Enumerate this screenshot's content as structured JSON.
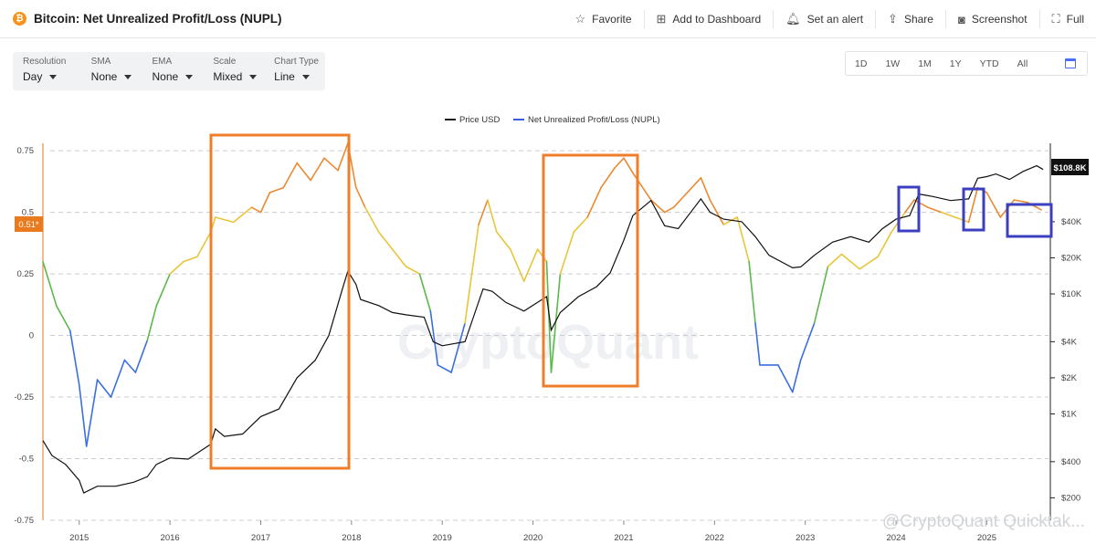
{
  "header": {
    "logo_symbol": "₿",
    "title": "Bitcoin: Net Unrealized Profit/Loss (NUPL)",
    "actions": [
      {
        "label": "Favorite",
        "icon": "star-icon",
        "glyph": "☆"
      },
      {
        "label": "Add to Dashboard",
        "icon": "add-dashboard-icon",
        "glyph": "⊞"
      },
      {
        "label": "Set an alert",
        "icon": "bell-icon",
        "glyph": "🔔︎"
      },
      {
        "label": "Share",
        "icon": "share-icon",
        "glyph": "⇪"
      },
      {
        "label": "Screenshot",
        "icon": "camera-icon",
        "glyph": "◙"
      },
      {
        "label": "Full",
        "icon": "fullscreen-icon",
        "glyph": "⛶"
      }
    ]
  },
  "toolbar": {
    "resolution": {
      "label": "Resolution",
      "value": "Day"
    },
    "sma": {
      "label": "SMA",
      "value": "None"
    },
    "ema": {
      "label": "EMA",
      "value": "None"
    },
    "scale": {
      "label": "Scale",
      "value": "Mixed"
    },
    "chart_type": {
      "label": "Chart Type",
      "value": "Line"
    }
  },
  "time_ranges": [
    "1D",
    "1W",
    "1M",
    "1Y",
    "YTD",
    "All"
  ],
  "chart_data": {
    "type": "line",
    "legend": [
      {
        "name": "Price USD",
        "color": "#1a1a1a"
      },
      {
        "name": "Net Unrealized Profit/Loss (NUPL)",
        "color": "#3b5bdb"
      }
    ],
    "watermark": "CryptoQuant",
    "source_watermark": "@CryptoQuant Quicktak...",
    "left_axis": {
      "ticks": [
        0.75,
        0.5,
        0.25,
        0,
        -0.25,
        -0.5,
        -0.75
      ],
      "labels": [
        "0.75",
        "0.5",
        "0.25",
        "0",
        "-0.25",
        "-0.5",
        "-0.75"
      ],
      "range": [
        -0.75,
        0.78
      ]
    },
    "right_axis": {
      "scale": "log",
      "ticks": [
        40000,
        20000,
        10000,
        4000,
        2000,
        1000,
        400,
        200
      ],
      "labels": [
        "$40K",
        "$20K",
        "$10K",
        "$4K",
        "$2K",
        "$1K",
        "$400",
        "$200"
      ],
      "range": [
        130,
        180000
      ]
    },
    "x_axis": {
      "labels": [
        "2015",
        "2016",
        "2017",
        "2018",
        "2019",
        "2020",
        "2021",
        "2022",
        "2023",
        "2024",
        "2025"
      ],
      "range": [
        2014.6,
        2025.7
      ]
    },
    "current_nupl_label": "0.51*",
    "current_price_label": "$108.8K",
    "nupl_colors": {
      "capitulation": "#3b6fe0",
      "hope": "#5db84b",
      "optimism": "#e9c53c",
      "belief": "#ea8a32"
    },
    "nupl_thresholds": [
      0,
      0.25,
      0.5
    ],
    "nupl_series": {
      "x": [
        2014.6,
        2014.75,
        2014.9,
        2015.0,
        2015.08,
        2015.2,
        2015.35,
        2015.5,
        2015.62,
        2015.75,
        2015.85,
        2016.0,
        2016.15,
        2016.3,
        2016.45,
        2016.5,
        2016.7,
        2016.9,
        2017.0,
        2017.1,
        2017.25,
        2017.4,
        2017.55,
        2017.7,
        2017.85,
        2017.96,
        2018.05,
        2018.15,
        2018.3,
        2018.45,
        2018.6,
        2018.75,
        2018.87,
        2018.95,
        2019.1,
        2019.25,
        2019.4,
        2019.5,
        2019.6,
        2019.75,
        2019.9,
        2020.05,
        2020.15,
        2020.2,
        2020.3,
        2020.45,
        2020.6,
        2020.75,
        2020.9,
        2021.0,
        2021.1,
        2021.3,
        2021.45,
        2021.55,
        2021.7,
        2021.85,
        2021.95,
        2022.1,
        2022.25,
        2022.38,
        2022.45,
        2022.5,
        2022.7,
        2022.86,
        2022.95,
        2023.1,
        2023.25,
        2023.4,
        2023.6,
        2023.8,
        2023.95,
        2024.1,
        2024.2,
        2024.35,
        2024.5,
        2024.65,
        2024.8,
        2024.9,
        2025.0,
        2025.15,
        2025.3,
        2025.45,
        2025.6
      ],
      "y": [
        0.3,
        0.12,
        0.02,
        -0.2,
        -0.45,
        -0.18,
        -0.25,
        -0.1,
        -0.15,
        -0.02,
        0.12,
        0.25,
        0.3,
        0.32,
        0.42,
        0.48,
        0.46,
        0.52,
        0.5,
        0.58,
        0.6,
        0.7,
        0.63,
        0.72,
        0.67,
        0.78,
        0.6,
        0.52,
        0.42,
        0.35,
        0.28,
        0.25,
        0.1,
        -0.12,
        -0.15,
        0.05,
        0.45,
        0.55,
        0.42,
        0.35,
        0.22,
        0.35,
        0.3,
        -0.15,
        0.25,
        0.42,
        0.48,
        0.6,
        0.68,
        0.72,
        0.66,
        0.55,
        0.5,
        0.52,
        0.58,
        0.64,
        0.55,
        0.45,
        0.48,
        0.3,
        0.05,
        -0.12,
        -0.12,
        -0.23,
        -0.1,
        0.05,
        0.28,
        0.33,
        0.27,
        0.32,
        0.42,
        0.5,
        0.55,
        0.52,
        0.5,
        0.48,
        0.46,
        0.6,
        0.58,
        0.48,
        0.55,
        0.54,
        0.51
      ]
    },
    "price_series": {
      "x": [
        2014.6,
        2014.7,
        2014.85,
        2015.0,
        2015.05,
        2015.2,
        2015.4,
        2015.6,
        2015.75,
        2015.85,
        2016.0,
        2016.2,
        2016.45,
        2016.5,
        2016.6,
        2016.8,
        2017.0,
        2017.2,
        2017.4,
        2017.6,
        2017.75,
        2017.9,
        2017.96,
        2018.05,
        2018.1,
        2018.3,
        2018.45,
        2018.6,
        2018.8,
        2018.9,
        2019.0,
        2019.25,
        2019.45,
        2019.55,
        2019.7,
        2019.9,
        2020.05,
        2020.15,
        2020.2,
        2020.3,
        2020.5,
        2020.7,
        2020.85,
        2021.0,
        2021.1,
        2021.3,
        2021.45,
        2021.6,
        2021.85,
        2021.95,
        2022.1,
        2022.3,
        2022.45,
        2022.6,
        2022.86,
        2022.95,
        2023.1,
        2023.3,
        2023.5,
        2023.7,
        2023.85,
        2024.0,
        2024.15,
        2024.25,
        2024.4,
        2024.6,
        2024.8,
        2024.9,
        2025.0,
        2025.1,
        2025.25,
        2025.4,
        2025.55,
        2025.62
      ],
      "y": [
        600,
        450,
        380,
        280,
        220,
        250,
        250,
        270,
        300,
        380,
        430,
        420,
        560,
        750,
        650,
        680,
        950,
        1100,
        2000,
        2800,
        4500,
        11000,
        15500,
        12000,
        9000,
        8000,
        7000,
        6700,
        6400,
        4000,
        3700,
        4000,
        11000,
        10500,
        8500,
        7200,
        8500,
        9500,
        5000,
        7000,
        9500,
        11500,
        15000,
        28000,
        45000,
        60000,
        37000,
        35000,
        62000,
        48000,
        42000,
        40000,
        30000,
        21000,
        16500,
        16800,
        21000,
        27000,
        30000,
        27000,
        35000,
        42000,
        45000,
        68000,
        65000,
        60000,
        62000,
        92000,
        95000,
        100000,
        90000,
        105000,
        117000,
        108800
      ]
    }
  }
}
